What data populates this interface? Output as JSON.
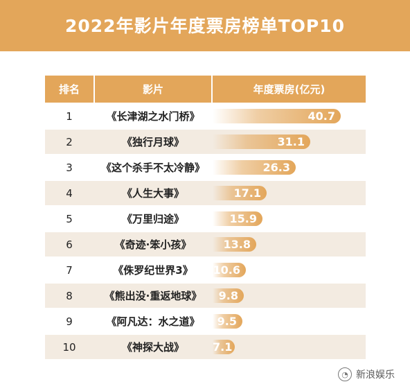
{
  "header": {
    "title": "2022年影片年度票房榜单TOP10"
  },
  "table_header": {
    "rank": "排名",
    "film": "影片",
    "box_office": "年度票房(亿元)"
  },
  "watermark": {
    "text": "新浪娱乐",
    "icon": "weibo-icon"
  },
  "colors": {
    "accent": "#e3a65a",
    "row_alt": "#f3ebe1",
    "text": "#222222"
  },
  "chart_data": {
    "type": "bar",
    "title": "2022年影片年度票房榜单TOP10",
    "categories": [
      "《长津湖之水门桥》",
      "《独行月球》",
      "《这个杀手不太冷静》",
      "《人生大事》",
      "《万里归途》",
      "《奇迹·笨小孩》",
      "《侏罗纪世界3》",
      "《熊出没·重返地球》",
      "《阿凡达：水之道》",
      "《神探大战》"
    ],
    "ranks": [
      "1",
      "2",
      "3",
      "4",
      "5",
      "6",
      "7",
      "8",
      "9",
      "10"
    ],
    "values": [
      40.7,
      31.1,
      26.3,
      17.1,
      15.9,
      13.8,
      10.6,
      9.8,
      9.5,
      7.1
    ],
    "value_labels": [
      "40.7",
      "31.1",
      "26.3",
      "17.1",
      "15.9",
      "13.8",
      "10.6",
      "9.8",
      "9.5",
      "7.1"
    ],
    "ylabel": "年度票房(亿元)",
    "orientation": "horizontal"
  }
}
